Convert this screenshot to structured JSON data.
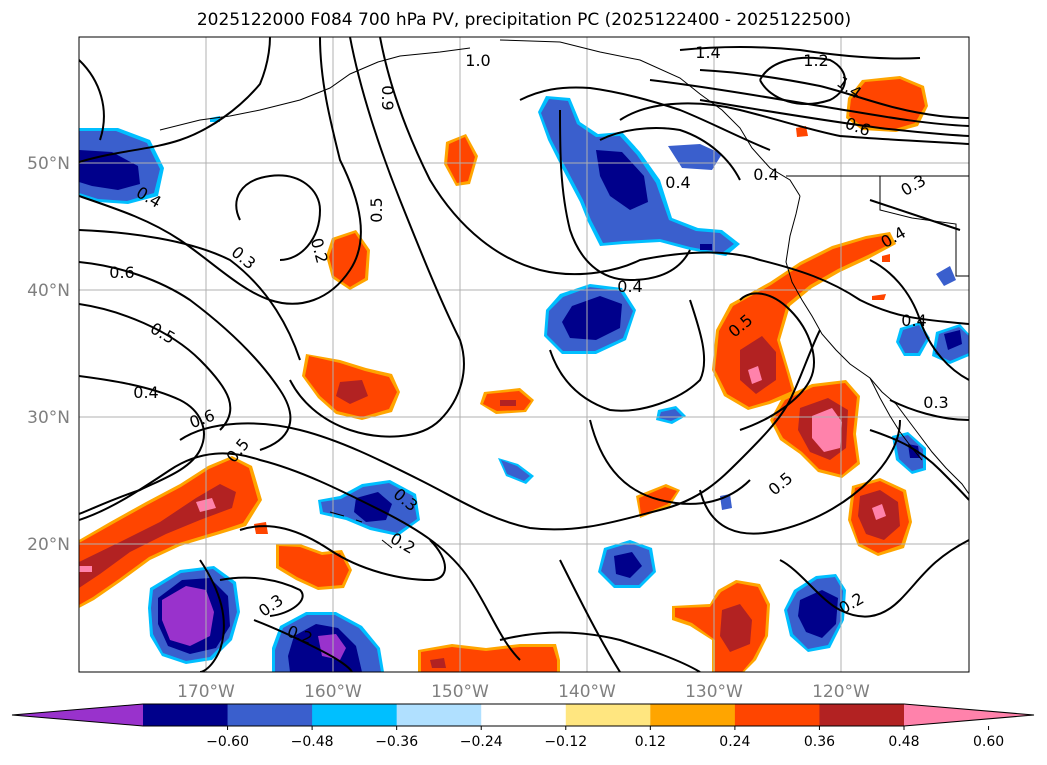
{
  "title": "2025122000 F084 700 hPa PV, precipitation PC (2025122400 - 2025122500)",
  "lat_labels": [
    "50°N",
    "40°N",
    "30°N",
    "20°N"
  ],
  "lon_labels": [
    "170°W",
    "160°W",
    "150°W",
    "140°W",
    "130°W",
    "120°W"
  ],
  "colorbar": {
    "colors": [
      "#9932cc",
      "#00008b",
      "#3a5fcd",
      "#00bfff",
      "#b0e0ff",
      "#ffffff",
      "#ffe680",
      "#ffa500",
      "#ff4500",
      "#b22222",
      "#ff82ab"
    ],
    "tick_labels": [
      "−0.60",
      "−0.48",
      "−0.36",
      "−0.24",
      "−0.12",
      "0.12",
      "0.24",
      "0.36",
      "0.48",
      "0.60"
    ]
  },
  "contour_labels": [
    "1.0",
    "1.4",
    "1.2",
    "1.4",
    "0.9",
    "0.5",
    "0.2",
    "0.3",
    "0.6",
    "0.5",
    "0.4",
    "0.4",
    "0.6",
    "0.5",
    "0.3",
    "0.2",
    "0.3",
    "0.2",
    "0.4",
    "0.5",
    "0.5",
    "0.2",
    "0.4",
    "0.4",
    "0.3",
    "0.4",
    "0.4",
    "0.3",
    "0.6"
  ]
}
